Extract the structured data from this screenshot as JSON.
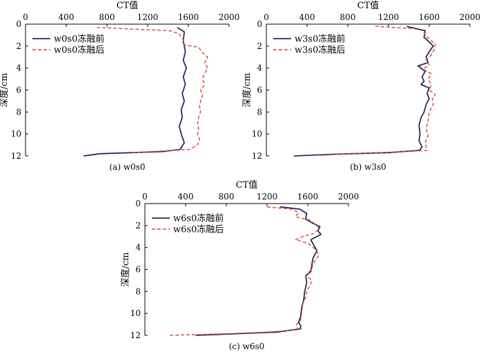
{
  "colors": {
    "before": "#2b2a5c",
    "after": "#d9453d",
    "axis": "#000000"
  },
  "chart_data": [
    {
      "type": "line",
      "caption": "(a) w0s0",
      "xlabel": "CT值",
      "ylabel": "深度/cm",
      "xlim": [
        0,
        2000
      ],
      "ylim": [
        0,
        12
      ],
      "xticks": [
        "0",
        "400",
        "800",
        "1200",
        "1600",
        "2000"
      ],
      "yticks": [
        "0",
        "2",
        "4",
        "6",
        "8",
        "10",
        "12"
      ],
      "legend_position": "top-left",
      "series": [
        {
          "name": "w0s0冻融前",
          "style": "solid",
          "points": [
            [
              1490,
              0.3
            ],
            [
              1560,
              0.7
            ],
            [
              1550,
              1.5
            ],
            [
              1570,
              2.5
            ],
            [
              1550,
              3.3
            ],
            [
              1580,
              4.0
            ],
            [
              1550,
              4.8
            ],
            [
              1570,
              5.5
            ],
            [
              1540,
              6.3
            ],
            [
              1560,
              7.0
            ],
            [
              1530,
              7.8
            ],
            [
              1540,
              8.5
            ],
            [
              1510,
              9.3
            ],
            [
              1530,
              10.0
            ],
            [
              1560,
              10.8
            ],
            [
              1520,
              11.4
            ],
            [
              1350,
              11.6
            ],
            [
              730,
              11.8
            ],
            [
              570,
              12.0
            ]
          ]
        },
        {
          "name": "w0s0冻融后",
          "style": "dashed",
          "points": [
            [
              700,
              0.3
            ],
            [
              1420,
              0.6
            ],
            [
              1510,
              0.9
            ],
            [
              1550,
              1.4
            ],
            [
              1560,
              1.9
            ],
            [
              1700,
              2.1
            ],
            [
              1740,
              2.6
            ],
            [
              1790,
              3.0
            ],
            [
              1760,
              3.5
            ],
            [
              1790,
              4.0
            ],
            [
              1760,
              4.5
            ],
            [
              1740,
              5.0
            ],
            [
              1760,
              5.5
            ],
            [
              1720,
              6.0
            ],
            [
              1740,
              6.5
            ],
            [
              1720,
              7.0
            ],
            [
              1710,
              7.5
            ],
            [
              1720,
              8.0
            ],
            [
              1700,
              8.5
            ],
            [
              1690,
              9.0
            ],
            [
              1700,
              9.5
            ],
            [
              1690,
              10.0
            ],
            [
              1710,
              10.5
            ],
            [
              1690,
              11.0
            ],
            [
              1610,
              11.4
            ],
            [
              1250,
              11.6
            ],
            [
              1050,
              11.7
            ]
          ]
        }
      ]
    },
    {
      "type": "line",
      "caption": "(b) w3s0",
      "xlabel": "CT值",
      "ylabel": "深度/cm",
      "xlim": [
        0,
        2000
      ],
      "ylim": [
        0,
        12
      ],
      "xticks": [
        "0",
        "400",
        "800",
        "1200",
        "1600",
        "2000"
      ],
      "yticks": [
        "0",
        "2",
        "4",
        "6",
        "8",
        "10",
        "12"
      ],
      "legend_position": "top-left",
      "series": [
        {
          "name": "w3s0冻融前",
          "style": "solid",
          "points": [
            [
              1380,
              0.2
            ],
            [
              1560,
              0.6
            ],
            [
              1550,
              1.2
            ],
            [
              1610,
              1.7
            ],
            [
              1640,
              2.0
            ],
            [
              1600,
              2.5
            ],
            [
              1570,
              3.0
            ],
            [
              1590,
              3.5
            ],
            [
              1490,
              3.8
            ],
            [
              1560,
              4.3
            ],
            [
              1530,
              4.8
            ],
            [
              1550,
              5.2
            ],
            [
              1520,
              5.5
            ],
            [
              1600,
              5.8
            ],
            [
              1580,
              6.3
            ],
            [
              1600,
              6.8
            ],
            [
              1570,
              7.3
            ],
            [
              1550,
              8.0
            ],
            [
              1520,
              8.5
            ],
            [
              1500,
              9.2
            ],
            [
              1510,
              10.0
            ],
            [
              1500,
              10.6
            ],
            [
              1530,
              11.2
            ],
            [
              1500,
              11.5
            ],
            [
              1200,
              11.7
            ],
            [
              650,
              11.85
            ],
            [
              270,
              12.0
            ]
          ]
        },
        {
          "name": "w3s0冻融后",
          "style": "dashed",
          "points": [
            [
              1070,
              0.2
            ],
            [
              1450,
              0.4
            ],
            [
              1540,
              0.6
            ],
            [
              1570,
              1.1
            ],
            [
              1620,
              1.5
            ],
            [
              1660,
              1.8
            ],
            [
              1650,
              2.3
            ],
            [
              1620,
              2.8
            ],
            [
              1570,
              3.3
            ],
            [
              1600,
              3.7
            ],
            [
              1540,
              4.1
            ],
            [
              1620,
              4.5
            ],
            [
              1590,
              5.0
            ],
            [
              1620,
              5.5
            ],
            [
              1600,
              6.0
            ],
            [
              1660,
              6.4
            ],
            [
              1630,
              6.8
            ],
            [
              1640,
              7.3
            ],
            [
              1600,
              8.0
            ],
            [
              1590,
              8.8
            ],
            [
              1570,
              9.5
            ],
            [
              1590,
              10.2
            ],
            [
              1560,
              10.8
            ],
            [
              1580,
              11.5
            ],
            [
              1270,
              11.65
            ],
            [
              800,
              11.8
            ],
            [
              530,
              11.95
            ]
          ]
        }
      ]
    },
    {
      "type": "line",
      "caption": "(c) w6s0",
      "xlabel": "CT值",
      "ylabel": "深度/cm",
      "xlim": [
        0,
        2000
      ],
      "ylim": [
        0,
        12
      ],
      "xticks": [
        "0",
        "400",
        "800",
        "1200",
        "1600",
        "2000"
      ],
      "yticks": [
        "0",
        "2",
        "4",
        "6",
        "8",
        "10",
        "12"
      ],
      "legend_position": "top-left",
      "series": [
        {
          "name": "w6s0冻融前",
          "style": "solid",
          "points": [
            [
              1330,
              0.3
            ],
            [
              1520,
              0.5
            ],
            [
              1590,
              0.9
            ],
            [
              1580,
              1.4
            ],
            [
              1650,
              1.8
            ],
            [
              1720,
              2.1
            ],
            [
              1700,
              2.5
            ],
            [
              1730,
              2.8
            ],
            [
              1630,
              3.3
            ],
            [
              1660,
              3.8
            ],
            [
              1690,
              4.3
            ],
            [
              1650,
              5.0
            ],
            [
              1640,
              5.6
            ],
            [
              1630,
              6.2
            ],
            [
              1580,
              6.6
            ],
            [
              1590,
              7.2
            ],
            [
              1570,
              8.0
            ],
            [
              1560,
              8.8
            ],
            [
              1540,
              9.5
            ],
            [
              1530,
              10.3
            ],
            [
              1510,
              10.8
            ],
            [
              1530,
              11.1
            ],
            [
              1530,
              11.4
            ],
            [
              1300,
              11.7
            ],
            [
              900,
              11.85
            ],
            [
              500,
              12.0
            ]
          ]
        },
        {
          "name": "w6s0冻融后",
          "style": "dashed",
          "points": [
            [
              1200,
              0.3
            ],
            [
              1440,
              0.5
            ],
            [
              1510,
              0.8
            ],
            [
              1480,
              1.2
            ],
            [
              1620,
              1.5
            ],
            [
              1690,
              2.0
            ],
            [
              1710,
              2.3
            ],
            [
              1670,
              2.7
            ],
            [
              1550,
              3.0
            ],
            [
              1480,
              3.3
            ],
            [
              1600,
              3.6
            ],
            [
              1680,
              4.2
            ],
            [
              1710,
              4.7
            ],
            [
              1650,
              5.5
            ],
            [
              1640,
              6.0
            ],
            [
              1580,
              6.5
            ],
            [
              1640,
              7.0
            ],
            [
              1620,
              7.5
            ],
            [
              1590,
              8.0
            ],
            [
              1580,
              8.5
            ],
            [
              1550,
              9.2
            ],
            [
              1540,
              10.0
            ],
            [
              1530,
              10.6
            ],
            [
              1490,
              11.0
            ],
            [
              1500,
              11.5
            ],
            [
              1210,
              11.7
            ],
            [
              800,
              11.85
            ],
            [
              230,
              12.0
            ]
          ]
        }
      ]
    }
  ]
}
